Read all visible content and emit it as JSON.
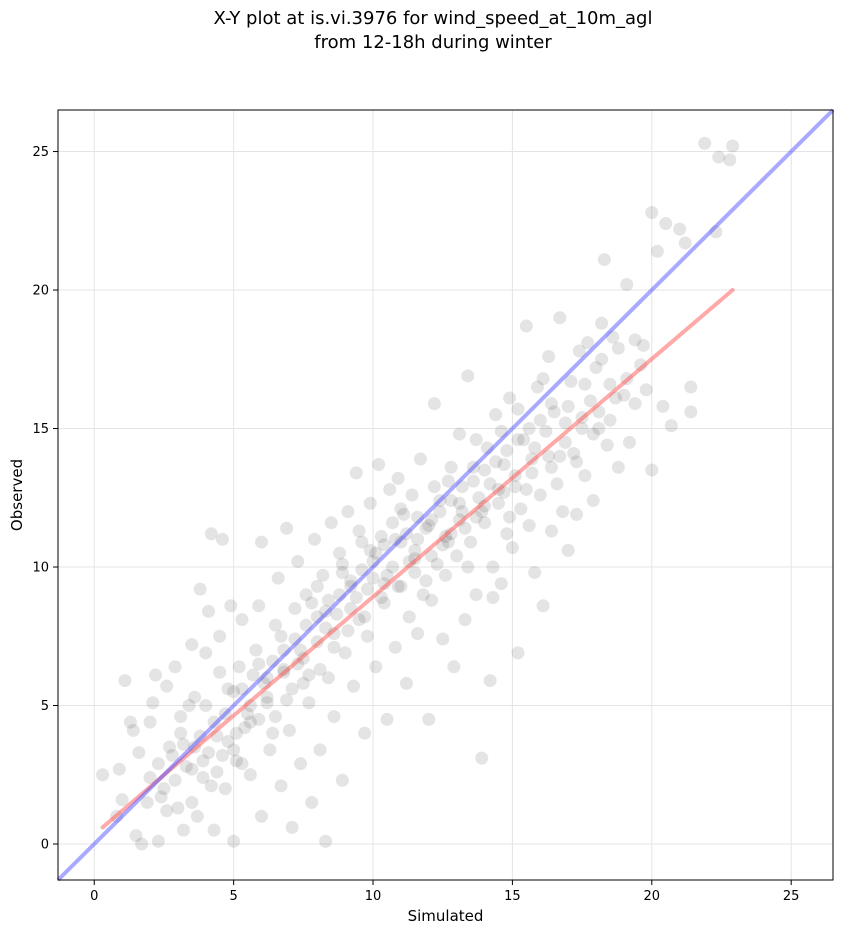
{
  "chart_data": {
    "type": "scatter",
    "title_line1": "X-Y plot at is.vi.3976 for wind_speed_at_10m_agl",
    "title_line2": "from 12-18h during winter",
    "xlabel": "Simulated",
    "ylabel": "Observed",
    "xlim": [
      -1.3,
      26.5
    ],
    "ylim": [
      -1.3,
      26.5
    ],
    "xticks": [
      0,
      5,
      10,
      15,
      20,
      25
    ],
    "yticks": [
      0,
      5,
      10,
      15,
      20,
      25
    ],
    "grid": true,
    "point_color": "#404040",
    "one_to_one_line": {
      "x": [
        -1.3,
        26.5
      ],
      "y": [
        -1.3,
        26.5
      ],
      "color": "#4040ff"
    },
    "fit_line": {
      "x": [
        0.3,
        22.9
      ],
      "y": [
        0.6,
        20.0
      ],
      "color": "#ff4040"
    },
    "points": [
      [
        0.3,
        2.5
      ],
      [
        0.9,
        2.7
      ],
      [
        1.1,
        5.9
      ],
      [
        0.8,
        1.0
      ],
      [
        1.0,
        1.6
      ],
      [
        1.3,
        4.4
      ],
      [
        1.4,
        4.1
      ],
      [
        1.6,
        3.3
      ],
      [
        1.5,
        0.3
      ],
      [
        1.7,
        0.0
      ],
      [
        1.9,
        1.5
      ],
      [
        2.0,
        4.4
      ],
      [
        2.1,
        5.1
      ],
      [
        2.2,
        6.1
      ],
      [
        2.3,
        0.1
      ],
      [
        2.5,
        2.0
      ],
      [
        2.6,
        5.7
      ],
      [
        2.8,
        3.2
      ],
      [
        2.9,
        6.4
      ],
      [
        3.0,
        1.3
      ],
      [
        3.1,
        4.0
      ],
      [
        3.2,
        0.5
      ],
      [
        3.4,
        5.0
      ],
      [
        3.5,
        7.2
      ],
      [
        3.6,
        3.5
      ],
      [
        3.7,
        1.0
      ],
      [
        3.8,
        9.2
      ],
      [
        3.9,
        2.4
      ],
      [
        4.0,
        6.9
      ],
      [
        4.1,
        8.4
      ],
      [
        4.2,
        11.2
      ],
      [
        4.3,
        0.5
      ],
      [
        4.4,
        3.9
      ],
      [
        4.5,
        7.5
      ],
      [
        4.6,
        11.0
      ],
      [
        4.7,
        2.0
      ],
      [
        4.8,
        5.6
      ],
      [
        4.9,
        8.6
      ],
      [
        5.0,
        0.1
      ],
      [
        5.1,
        3.0
      ],
      [
        5.2,
        6.4
      ],
      [
        5.3,
        8.1
      ],
      [
        5.5,
        4.7
      ],
      [
        5.6,
        2.5
      ],
      [
        5.8,
        7.0
      ],
      [
        5.9,
        8.6
      ],
      [
        6.0,
        1.0
      ],
      [
        6.0,
        10.9
      ],
      [
        6.2,
        5.3
      ],
      [
        6.3,
        3.4
      ],
      [
        6.5,
        7.9
      ],
      [
        6.6,
        9.6
      ],
      [
        6.7,
        2.1
      ],
      [
        6.8,
        6.3
      ],
      [
        6.9,
        11.4
      ],
      [
        7.0,
        4.1
      ],
      [
        7.1,
        0.6
      ],
      [
        7.2,
        8.5
      ],
      [
        7.3,
        10.2
      ],
      [
        7.4,
        2.9
      ],
      [
        7.5,
        6.7
      ],
      [
        7.6,
        9.0
      ],
      [
        7.7,
        5.1
      ],
      [
        7.8,
        1.5
      ],
      [
        7.9,
        11.0
      ],
      [
        8.0,
        7.3
      ],
      [
        8.1,
        3.4
      ],
      [
        8.2,
        9.7
      ],
      [
        8.3,
        0.1
      ],
      [
        8.4,
        6.0
      ],
      [
        8.5,
        11.6
      ],
      [
        8.6,
        4.6
      ],
      [
        8.7,
        8.3
      ],
      [
        8.8,
        10.5
      ],
      [
        8.9,
        2.3
      ],
      [
        9.0,
        6.9
      ],
      [
        9.1,
        12.0
      ],
      [
        9.2,
        9.3
      ],
      [
        9.3,
        5.7
      ],
      [
        9.4,
        13.4
      ],
      [
        9.5,
        8.1
      ],
      [
        9.6,
        10.9
      ],
      [
        9.7,
        4.0
      ],
      [
        9.8,
        7.5
      ],
      [
        9.9,
        12.3
      ],
      [
        10.0,
        9.6
      ],
      [
        10.1,
        6.4
      ],
      [
        10.2,
        13.7
      ],
      [
        10.3,
        11.1
      ],
      [
        10.4,
        8.7
      ],
      [
        10.5,
        4.5
      ],
      [
        10.6,
        12.8
      ],
      [
        10.7,
        10.0
      ],
      [
        10.8,
        7.1
      ],
      [
        10.9,
        13.2
      ],
      [
        11.0,
        9.3
      ],
      [
        11.1,
        11.9
      ],
      [
        11.2,
        5.8
      ],
      [
        11.3,
        8.2
      ],
      [
        11.4,
        12.6
      ],
      [
        11.5,
        10.6
      ],
      [
        11.6,
        7.6
      ],
      [
        11.7,
        13.9
      ],
      [
        11.8,
        9.0
      ],
      [
        11.9,
        11.4
      ],
      [
        12.0,
        4.5
      ],
      [
        12.1,
        8.8
      ],
      [
        12.2,
        15.9
      ],
      [
        12.3,
        10.1
      ],
      [
        12.4,
        12.4
      ],
      [
        12.5,
        7.4
      ],
      [
        12.6,
        9.7
      ],
      [
        12.7,
        13.1
      ],
      [
        12.8,
        11.2
      ],
      [
        12.9,
        6.4
      ],
      [
        13.0,
        10.4
      ],
      [
        13.1,
        14.8
      ],
      [
        13.2,
        12.0
      ],
      [
        13.3,
        8.1
      ],
      [
        13.4,
        16.9
      ],
      [
        13.5,
        10.9
      ],
      [
        13.6,
        13.6
      ],
      [
        13.7,
        9.0
      ],
      [
        13.8,
        12.5
      ],
      [
        13.9,
        3.1
      ],
      [
        14.0,
        11.6
      ],
      [
        14.1,
        14.3
      ],
      [
        14.2,
        5.9
      ],
      [
        14.3,
        10.0
      ],
      [
        14.4,
        15.5
      ],
      [
        14.5,
        12.8
      ],
      [
        14.6,
        9.4
      ],
      [
        14.7,
        13.7
      ],
      [
        14.8,
        11.2
      ],
      [
        14.9,
        16.1
      ],
      [
        15.0,
        10.7
      ],
      [
        15.1,
        13.3
      ],
      [
        15.2,
        6.9
      ],
      [
        15.3,
        12.1
      ],
      [
        15.4,
        14.6
      ],
      [
        15.5,
        18.7
      ],
      [
        15.6,
        11.5
      ],
      [
        15.7,
        13.9
      ],
      [
        15.8,
        9.8
      ],
      [
        15.9,
        16.5
      ],
      [
        16.0,
        12.6
      ],
      [
        16.1,
        8.6
      ],
      [
        16.2,
        14.9
      ],
      [
        16.3,
        17.6
      ],
      [
        16.4,
        11.3
      ],
      [
        16.5,
        15.6
      ],
      [
        16.6,
        13.0
      ],
      [
        16.7,
        19.0
      ],
      [
        16.8,
        12.0
      ],
      [
        16.9,
        15.2
      ],
      [
        17.0,
        10.6
      ],
      [
        17.1,
        16.7
      ],
      [
        17.2,
        14.1
      ],
      [
        17.3,
        11.9
      ],
      [
        17.4,
        17.8
      ],
      [
        17.5,
        15.4
      ],
      [
        17.6,
        13.3
      ],
      [
        17.7,
        18.1
      ],
      [
        17.8,
        16.0
      ],
      [
        17.9,
        12.4
      ],
      [
        18.0,
        17.2
      ],
      [
        18.1,
        15.0
      ],
      [
        18.2,
        18.8
      ],
      [
        18.3,
        21.1
      ],
      [
        18.4,
        14.4
      ],
      [
        18.5,
        16.6
      ],
      [
        18.6,
        18.3
      ],
      [
        18.8,
        13.6
      ],
      [
        19.0,
        16.2
      ],
      [
        19.1,
        20.2
      ],
      [
        19.2,
        14.5
      ],
      [
        19.4,
        18.2
      ],
      [
        19.6,
        17.3
      ],
      [
        19.8,
        16.4
      ],
      [
        20.0,
        13.5
      ],
      [
        20.0,
        22.8
      ],
      [
        20.2,
        21.4
      ],
      [
        20.4,
        15.8
      ],
      [
        20.5,
        22.4
      ],
      [
        20.7,
        15.1
      ],
      [
        21.0,
        22.2
      ],
      [
        21.2,
        21.7
      ],
      [
        21.4,
        15.6
      ],
      [
        21.4,
        16.5
      ],
      [
        21.9,
        25.3
      ],
      [
        22.3,
        22.1
      ],
      [
        22.4,
        24.8
      ],
      [
        22.8,
        24.7
      ],
      [
        22.9,
        25.2
      ],
      [
        2.4,
        1.7
      ],
      [
        2.7,
        3.5
      ],
      [
        3.3,
        2.8
      ],
      [
        3.9,
        3.0
      ],
      [
        4.3,
        4.4
      ],
      [
        4.6,
        3.2
      ],
      [
        5.0,
        5.5
      ],
      [
        5.4,
        4.2
      ],
      [
        5.7,
        6.1
      ],
      [
        6.1,
        5.8
      ],
      [
        6.4,
        6.6
      ],
      [
        6.8,
        7.0
      ],
      [
        7.2,
        7.4
      ],
      [
        7.6,
        7.9
      ],
      [
        8.0,
        8.2
      ],
      [
        8.4,
        8.8
      ],
      [
        8.8,
        9.0
      ],
      [
        9.2,
        9.5
      ],
      [
        9.6,
        9.9
      ],
      [
        10.0,
        10.2
      ],
      [
        10.4,
        10.8
      ],
      [
        10.8,
        11.0
      ],
      [
        11.2,
        11.2
      ],
      [
        11.6,
        11.8
      ],
      [
        12.0,
        11.5
      ],
      [
        12.4,
        12.0
      ],
      [
        12.8,
        12.4
      ],
      [
        13.2,
        12.9
      ],
      [
        13.6,
        13.1
      ],
      [
        14.0,
        13.5
      ],
      [
        14.4,
        13.8
      ],
      [
        14.8,
        14.2
      ],
      [
        15.2,
        14.6
      ],
      [
        15.6,
        15.0
      ],
      [
        16.0,
        15.3
      ],
      [
        16.4,
        15.9
      ],
      [
        3.1,
        4.6
      ],
      [
        3.6,
        5.3
      ],
      [
        4.2,
        2.1
      ],
      [
        4.8,
        3.7
      ],
      [
        5.3,
        2.9
      ],
      [
        5.9,
        4.5
      ],
      [
        6.4,
        4.0
      ],
      [
        6.9,
        5.2
      ],
      [
        7.5,
        5.8
      ],
      [
        8.1,
        6.3
      ],
      [
        8.6,
        7.1
      ],
      [
        9.1,
        7.7
      ],
      [
        9.7,
        8.2
      ],
      [
        10.3,
        8.9
      ],
      [
        10.9,
        9.3
      ],
      [
        11.5,
        9.8
      ],
      [
        12.1,
        10.4
      ],
      [
        12.7,
        10.9
      ],
      [
        13.3,
        11.4
      ],
      [
        13.9,
        12.0
      ],
      [
        14.5,
        12.3
      ],
      [
        15.1,
        12.9
      ],
      [
        15.7,
        13.4
      ],
      [
        16.3,
        14.0
      ],
      [
        16.9,
        14.5
      ],
      [
        17.5,
        15.0
      ],
      [
        18.1,
        15.6
      ],
      [
        18.7,
        16.1
      ],
      [
        3.5,
        1.5
      ],
      [
        4.0,
        5.0
      ],
      [
        4.5,
        6.2
      ],
      [
        5.1,
        4.0
      ],
      [
        5.6,
        5.0
      ],
      [
        6.2,
        6.0
      ],
      [
        6.7,
        7.5
      ],
      [
        7.3,
        6.5
      ],
      [
        7.8,
        8.7
      ],
      [
        8.3,
        7.8
      ],
      [
        8.9,
        9.8
      ],
      [
        9.4,
        8.9
      ],
      [
        9.9,
        10.6
      ],
      [
        10.5,
        9.7
      ],
      [
        11.0,
        10.9
      ],
      [
        11.5,
        10.3
      ],
      [
        12.1,
        11.7
      ],
      [
        12.6,
        11.1
      ],
      [
        13.1,
        12.3
      ],
      [
        13.7,
        11.8
      ],
      [
        14.2,
        13.0
      ],
      [
        14.7,
        12.7
      ],
      [
        2.0,
        2.4
      ],
      [
        2.3,
        2.9
      ],
      [
        2.6,
        1.2
      ],
      [
        2.9,
        2.3
      ],
      [
        3.2,
        3.6
      ],
      [
        3.5,
        2.7
      ],
      [
        3.8,
        3.9
      ],
      [
        4.1,
        3.3
      ],
      [
        4.4,
        2.6
      ],
      [
        4.7,
        4.7
      ],
      [
        5.0,
        3.4
      ],
      [
        5.3,
        5.6
      ],
      [
        5.6,
        4.4
      ],
      [
        5.9,
        6.5
      ],
      [
        6.2,
        5.1
      ],
      [
        6.5,
        4.6
      ],
      [
        6.8,
        6.2
      ],
      [
        7.1,
        5.6
      ],
      [
        7.4,
        7.0
      ],
      [
        7.7,
        6.1
      ],
      [
        8.0,
        9.3
      ],
      [
        8.3,
        8.4
      ],
      [
        8.6,
        7.6
      ],
      [
        8.9,
        10.1
      ],
      [
        9.2,
        8.5
      ],
      [
        9.5,
        11.3
      ],
      [
        9.8,
        9.2
      ],
      [
        10.1,
        10.5
      ],
      [
        10.4,
        9.4
      ],
      [
        10.7,
        11.6
      ],
      [
        11.0,
        12.1
      ],
      [
        11.3,
        10.2
      ],
      [
        11.6,
        11.0
      ],
      [
        11.9,
        9.5
      ],
      [
        12.2,
        12.9
      ],
      [
        12.5,
        10.8
      ],
      [
        12.8,
        13.6
      ],
      [
        13.1,
        11.7
      ],
      [
        13.4,
        10.0
      ],
      [
        13.7,
        14.6
      ],
      [
        14.0,
        12.2
      ],
      [
        14.3,
        8.9
      ],
      [
        14.6,
        14.9
      ],
      [
        14.9,
        11.8
      ],
      [
        15.2,
        15.7
      ],
      [
        15.5,
        12.8
      ],
      [
        15.8,
        14.3
      ],
      [
        16.1,
        16.8
      ],
      [
        16.4,
        13.6
      ],
      [
        16.7,
        14.0
      ],
      [
        17.0,
        15.8
      ],
      [
        17.3,
        13.8
      ],
      [
        17.6,
        16.6
      ],
      [
        17.9,
        14.8
      ],
      [
        18.2,
        17.5
      ],
      [
        18.5,
        15.3
      ],
      [
        18.8,
        17.9
      ],
      [
        19.1,
        16.8
      ],
      [
        19.4,
        15.9
      ],
      [
        19.7,
        18.0
      ]
    ]
  }
}
